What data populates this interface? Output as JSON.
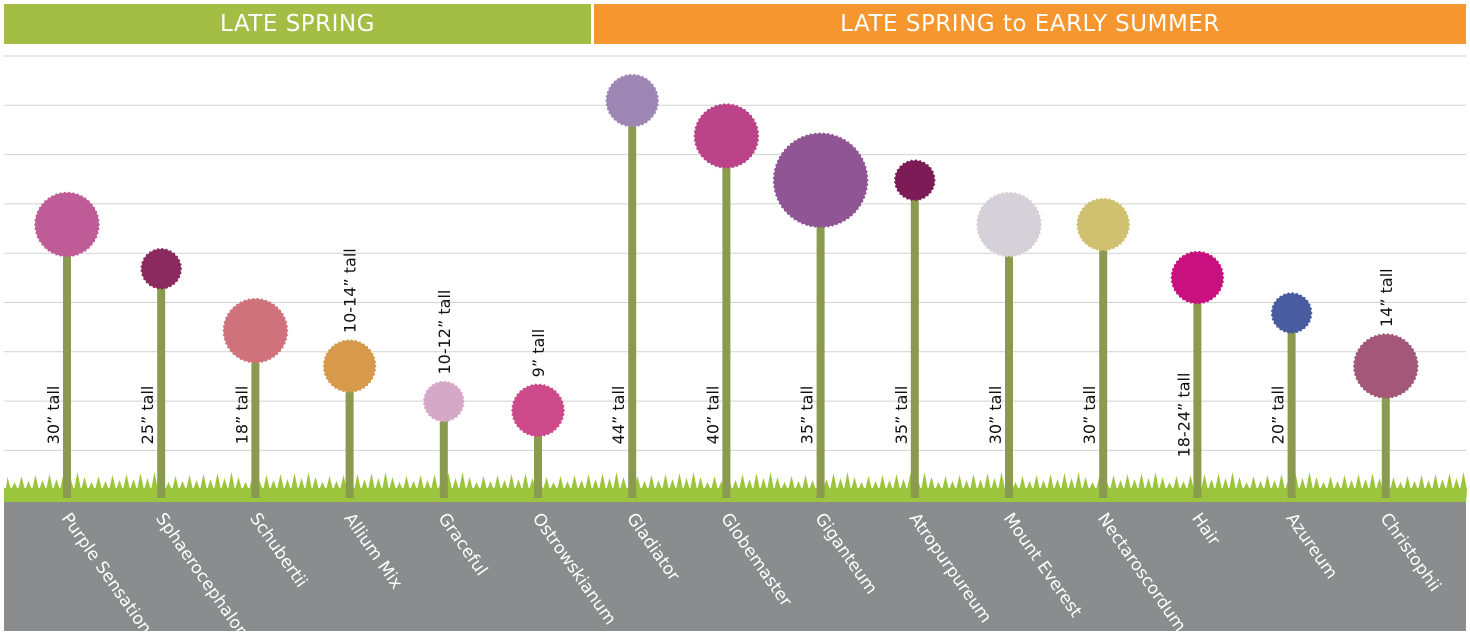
{
  "bands": {
    "late_spring": "LATE SPRING",
    "late_spring_early_summer": "LATE SPRING to EARLY SUMMER"
  },
  "chart_data": {
    "type": "lollipop",
    "title": "",
    "xlabel": "",
    "ylabel": "",
    "ylim": [
      0,
      50
    ],
    "grid": true,
    "categories": [
      "Purple Sensation",
      "Sphaerocephalon",
      "Schubertii",
      "Allium Mix",
      "Graceful",
      "Ostrowskianum",
      "Gladiator",
      "Globemaster",
      "Giganteum",
      "Atropurpureum",
      "Mount Everest",
      "Nectaroscordum",
      "Hair",
      "Azureum",
      "Christophii"
    ],
    "heights": [
      30,
      25,
      18,
      14,
      10,
      9,
      44,
      40,
      35,
      35,
      30,
      30,
      24,
      20,
      14
    ],
    "height_labels": [
      "30” tall",
      "25” tall",
      "18” tall",
      "10-14” tall",
      "10-12” tall",
      "9” tall",
      "44” tall",
      "40” tall",
      "35” tall",
      "35” tall",
      "30” tall",
      "30” tall",
      "18-24” tall",
      "20” tall",
      "14” tall"
    ],
    "label_side": [
      "stem",
      "stem",
      "stem",
      "above",
      "above",
      "above",
      "stem",
      "stem",
      "stem",
      "stem",
      "stem",
      "stem",
      "stem",
      "stem",
      "above"
    ],
    "bloom_size": [
      "large",
      "small",
      "large",
      "medium",
      "small",
      "medium",
      "medium",
      "large",
      "xlarge",
      "small",
      "large",
      "medium",
      "medium",
      "small",
      "large"
    ],
    "season": [
      "late_spring",
      "late_spring",
      "late_spring",
      "late_spring",
      "late_spring",
      "late_spring",
      "late_spring_early_summer",
      "late_spring_early_summer",
      "late_spring_early_summer",
      "late_spring_early_summer",
      "late_spring_early_summer",
      "late_spring_early_summer",
      "late_spring_early_summer",
      "late_spring_early_summer",
      "late_spring_early_summer"
    ],
    "colors": [
      "#bf5b96",
      "#8b2a5e",
      "#cf727b",
      "#d79a4b",
      "#d6a8c8",
      "#cd4a8a",
      "#9e86b4",
      "#bb4488",
      "#8f5594",
      "#7d1b56",
      "#d6d0d8",
      "#cfc170",
      "#c9107f",
      "#4a5ca0",
      "#a35879"
    ],
    "stem_color": "#8a9a4e",
    "grass_color": "#9cc53e",
    "ground_color": "#8b8c8e"
  }
}
